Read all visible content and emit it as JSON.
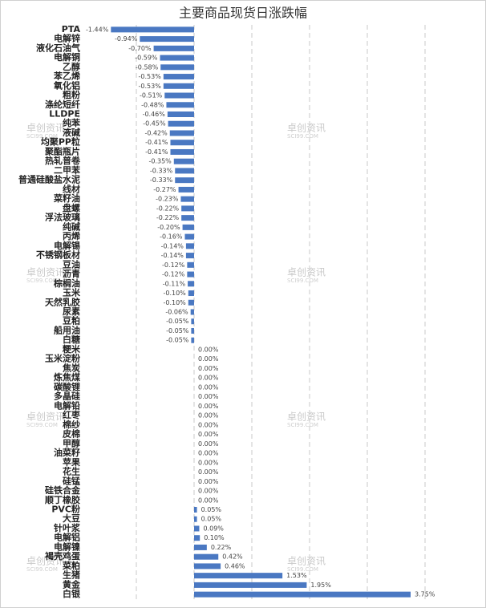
{
  "chart_data": {
    "type": "hbar",
    "title": "主要商品现货日涨跌幅",
    "categories": [
      "PTA",
      "电解锌",
      "液化石油气",
      "电解铜",
      "乙醇",
      "苯乙烯",
      "氧化铝",
      "粗粉",
      "涤纶短纤",
      "LLDPE",
      "纯苯",
      "液碱",
      "均聚PP粒",
      "聚酯瓶片",
      "热轧普卷",
      "二甲苯",
      "普通硅酸盐水泥",
      "线材",
      "菜籽油",
      "盘螺",
      "浮法玻璃",
      "纯碱",
      "丙烯",
      "电解锡",
      "不锈钢板材",
      "豆油",
      "沥青",
      "棕榈油",
      "玉米",
      "天然乳胶",
      "尿素",
      "豆粕",
      "船用油",
      "白糖",
      "粳米",
      "玉米淀粉",
      "焦炭",
      "炼焦煤",
      "碳酸锂",
      "多晶硅",
      "电解铅",
      "红枣",
      "棉纱",
      "皮棉",
      "甲醇",
      "油菜籽",
      "苹果",
      "花生",
      "硅锰",
      "硅铁合金",
      "顺丁橡胶",
      "PVC粉",
      "大豆",
      "针叶浆",
      "电解铝",
      "电解镍",
      "褐壳鸡蛋",
      "菜粕",
      "生猪",
      "黄金",
      "白银"
    ],
    "values": [
      -1.44,
      -0.94,
      -0.7,
      -0.59,
      -0.58,
      -0.53,
      -0.53,
      -0.51,
      -0.48,
      -0.46,
      -0.45,
      -0.42,
      -0.41,
      -0.41,
      -0.35,
      -0.33,
      -0.33,
      -0.27,
      -0.23,
      -0.22,
      -0.22,
      -0.2,
      -0.16,
      -0.14,
      -0.14,
      -0.12,
      -0.12,
      -0.11,
      -0.1,
      -0.1,
      -0.06,
      -0.05,
      -0.05,
      -0.05,
      0,
      0,
      0,
      0,
      0,
      0,
      0,
      0,
      0,
      0,
      0,
      0,
      0,
      0,
      0,
      0,
      0,
      0.05,
      0.05,
      0.09,
      0.1,
      0.22,
      0.42,
      0.46,
      1.53,
      1.95,
      3.75
    ],
    "value_labels": [
      "-1.44%",
      "-0.94%",
      "-0.70%",
      "-0.59%",
      "-0.58%",
      "-0.53%",
      "-0.53%",
      "-0.51%",
      "-0.48%",
      "-0.46%",
      "-0.45%",
      "-0.42%",
      "-0.41%",
      "-0.41%",
      "-0.35%",
      "-0.33%",
      "-0.33%",
      "-0.27%",
      "-0.23%",
      "-0.22%",
      "-0.22%",
      "-0.20%",
      "-0.16%",
      "-0.14%",
      "-0.14%",
      "-0.12%",
      "-0.12%",
      "-0.11%",
      "-0.10%",
      "-0.10%",
      "-0.06%",
      "-0.05%",
      "-0.05%",
      "-0.05%",
      "0.00%",
      "0.00%",
      "0.00%",
      "0.00%",
      "0.00%",
      "0.00%",
      "0.00%",
      "0.00%",
      "0.00%",
      "0.00%",
      "0.00%",
      "0.00%",
      "0.00%",
      "0.00%",
      "0.00%",
      "0.00%",
      "0.00%",
      "0.05%",
      "0.05%",
      "0.09%",
      "0.10%",
      "0.22%",
      "0.42%",
      "0.46%",
      "1.53%",
      "1.95%",
      "3.75%"
    ],
    "color": "#4a78c2",
    "xlim": [
      -2,
      4.5
    ],
    "xticks": [
      -2,
      -1,
      0,
      1,
      2,
      3,
      4
    ],
    "grid": true,
    "watermark": {
      "name": "卓创资讯",
      "site": "SCI99.COM"
    }
  }
}
